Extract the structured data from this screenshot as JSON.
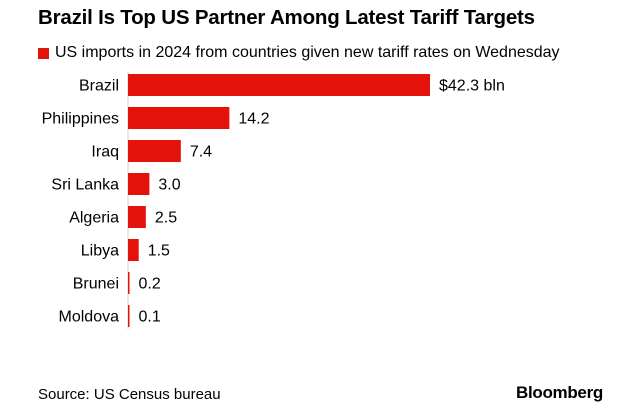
{
  "chart_data": {
    "type": "bar",
    "orientation": "horizontal",
    "title": "Brazil Is Top US Partner Among Latest Tariff Targets",
    "series": [
      {
        "name": "US imports in 2024 from countries given new tariff rates on Wednesday",
        "color": "#e3120b",
        "values": [
          42.3,
          14.2,
          7.4,
          3.0,
          2.5,
          1.5,
          0.2,
          0.1
        ]
      }
    ],
    "categories": [
      "Brazil",
      "Philippines",
      "Iraq",
      "Sri Lanka",
      "Algeria",
      "Libya",
      "Brunei",
      "Moldova"
    ],
    "value_labels": [
      "$42.3 bln",
      "14.2",
      "7.4",
      "3.0",
      "2.5",
      "1.5",
      "0.2",
      "0.1"
    ],
    "xlabel": "",
    "ylabel": "",
    "grid": false,
    "legend": "top-left",
    "source": "Source: US Census bureau",
    "brand": "Bloomberg"
  }
}
